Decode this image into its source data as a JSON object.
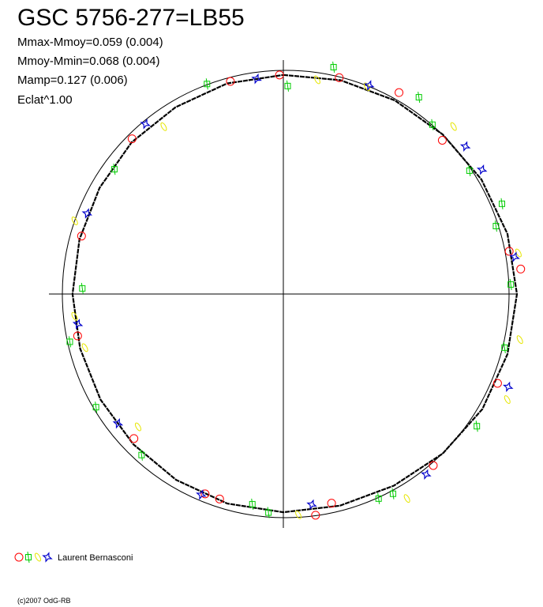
{
  "chart_data": {
    "type": "polar",
    "title": "GSC 5756-277=LB55",
    "stats": [
      "Mmax-Mmoy=0.059 (0.004)",
      "Mmoy-Mmin=0.068 (0.004)",
      "Mamp=0.127 (0.006)",
      "Eclat^1.00"
    ],
    "legend_label": "Laurent Bernasconi",
    "footer": "(c)2007 OdG-RB",
    "curve": {
      "color": "#000000",
      "x": [
        0,
        15,
        30,
        45,
        60,
        75,
        90,
        105,
        120,
        135,
        150,
        165,
        180,
        195,
        210,
        225,
        240,
        255,
        270,
        285,
        300,
        315,
        330,
        345
      ],
      "values": [
        0.99,
        1.0,
        1.01,
        1.02,
        1.035,
        1.05,
        1.057,
        1.05,
        1.04,
        1.02,
        1.0,
        0.99,
        0.986,
        0.98,
        0.97,
        0.96,
        0.955,
        0.952,
        0.954,
        0.955,
        0.96,
        0.97,
        0.975,
        0.985
      ]
    },
    "series": [
      {
        "marker": "circle",
        "color": "#ff0000",
        "x": [
          359,
          346,
          14.5,
          29.9,
          46,
          315.7,
          286,
          79.3,
          84,
          258.5,
          112.6,
          138.8,
          167,
          171.7,
          197.3,
          226,
          201.4
        ],
        "values": [
          0.99,
          0.99,
          1.01,
          1.05,
          1.0,
          0.98,
          0.95,
          1.04,
          1.08,
          0.95,
          1.05,
          1.03,
          0.97,
          1.01,
          0.97,
          0.94,
          0.97
        ]
      },
      {
        "marker": "square",
        "color": "#00cc00",
        "x": [
          12.5,
          1.2,
          340,
          34.6,
          41.4,
          56.5,
          306.4,
          67.6,
          72.3,
          271.6,
          87.6,
          103.6,
          257.4,
          238.9,
          124.3,
          221.4,
          155,
          188.4,
          183.9,
          151.2
        ],
        "values": [
          1.05,
          0.94,
          1.01,
          1.08,
          1.02,
          1.01,
          0.95,
          1.07,
          1.01,
          0.91,
          1.03,
          1.03,
          0.99,
          0.99,
          1.06,
          0.97,
          1.02,
          0.96,
          0.99,
          1.03
        ]
      },
      {
        "marker": "diamond",
        "color": "#e6e600",
        "x": [
          9,
          22,
          45.5,
          324.4,
          289.3,
          80.1,
          100.9,
          115.2,
          254.9,
          227.6,
          148.8,
          176.1,
          263.9
        ],
        "values": [
          0.98,
          1.01,
          1.08,
          0.93,
          1.0,
          1.08,
          1.09,
          1.12,
          0.93,
          0.89,
          1.08,
          1.0,
          0.95
        ]
      },
      {
        "marker": "star",
        "color": "#0000cc",
        "x": [
          352.9,
          22.4,
          51,
          320.9,
          292.3,
          80.9,
          261.7,
          112.4,
          232,
          141.6,
          172.3,
          202.3,
          58
        ],
        "values": [
          0.98,
          1.02,
          1.06,
          0.99,
          0.96,
          1.06,
          0.94,
          1.1,
          0.95,
          1.04,
          0.96,
          0.98,
          1.06
        ]
      }
    ]
  }
}
